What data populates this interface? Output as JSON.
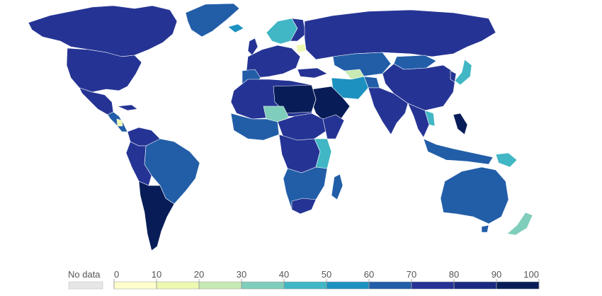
{
  "legend": {
    "no_data_label": "No data",
    "no_data_color": "#e6e6e6",
    "bins": [
      {
        "from": 0,
        "to": 10,
        "color": "#ffffcc"
      },
      {
        "from": 10,
        "to": 20,
        "color": "#edf8b1"
      },
      {
        "from": 20,
        "to": 30,
        "color": "#c7e9b4"
      },
      {
        "from": 30,
        "to": 40,
        "color": "#7fcdbb"
      },
      {
        "from": 40,
        "to": 50,
        "color": "#41b6c4"
      },
      {
        "from": 50,
        "to": 60,
        "color": "#1d91c0"
      },
      {
        "from": 60,
        "to": 70,
        "color": "#225ea8"
      },
      {
        "from": 70,
        "to": 80,
        "color": "#253494"
      },
      {
        "from": 80,
        "to": 90,
        "color": "#1a2a80"
      },
      {
        "from": 90,
        "to": 100,
        "color": "#081d58"
      }
    ],
    "ticks": [
      "0",
      "10",
      "20",
      "30",
      "40",
      "50",
      "60",
      "70",
      "80",
      "90",
      "100"
    ]
  },
  "map": {
    "ocean_color": "#ffffff",
    "border_color": "#ffffff",
    "default_fill": "#253494"
  }
}
